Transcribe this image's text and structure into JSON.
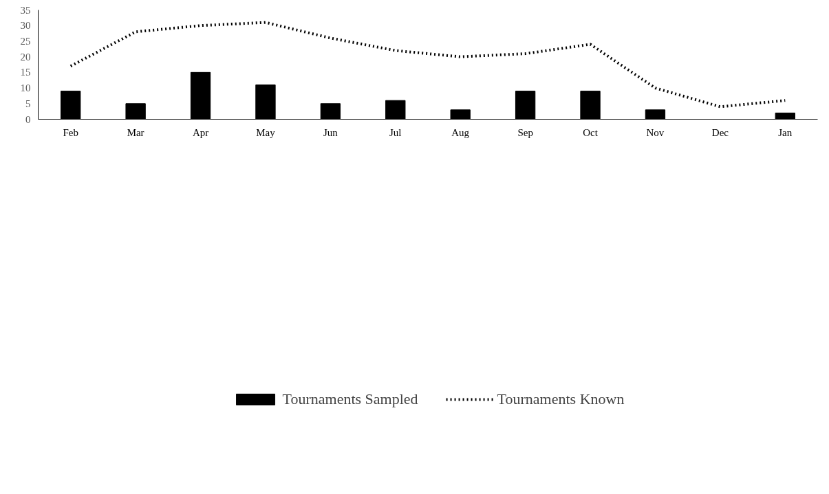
{
  "chart_data": {
    "type": "bar",
    "categories": [
      "Feb",
      "Mar",
      "Apr",
      "May",
      "Jun",
      "Jul",
      "Aug",
      "Sep",
      "Oct",
      "Nov",
      "Dec",
      "Jan"
    ],
    "series": [
      {
        "name": "Tournaments Sampled",
        "color": "#000000",
        "values": [
          9,
          5,
          15,
          11,
          5,
          6,
          3,
          9,
          9,
          3,
          0,
          2
        ]
      },
      {
        "name": "Tournaments Known",
        "type": "line",
        "color": "#000000",
        "line_style": "dotted",
        "values": [
          17,
          28,
          30,
          31,
          26,
          22,
          20,
          21,
          24,
          10,
          4,
          6
        ]
      }
    ],
    "ylim": [
      0,
      35
    ],
    "yticks": [
      0,
      5,
      10,
      15,
      20,
      25,
      30,
      35
    ],
    "grid": false,
    "legend": "bottom"
  }
}
